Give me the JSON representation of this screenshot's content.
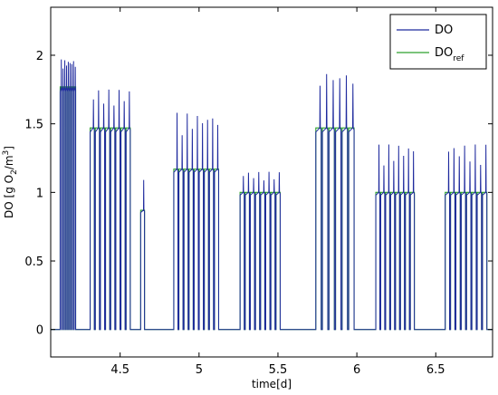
{
  "chart_data": {
    "type": "line",
    "xlabel": "time[d]",
    "ylabel": {
      "text": "DO [g O",
      "sub": "2",
      "mid": "/m",
      "sup": "3",
      "end": "]"
    },
    "xlim": [
      4.06,
      6.86
    ],
    "ylim": [
      -0.2,
      2.35
    ],
    "xticks": [
      4.5,
      5,
      5.5,
      6,
      6.5
    ],
    "xtick_labels": [
      "4.5",
      "5",
      "5.5",
      "6",
      "6.5"
    ],
    "yticks": [
      0,
      0.5,
      1,
      1.5,
      2
    ],
    "ytick_labels": [
      "0",
      "0.5",
      "1",
      "1.5",
      "2"
    ],
    "grid": false,
    "legend_position": "top-right",
    "legend": [
      {
        "name": "DO",
        "color": "#1f2a9e"
      },
      {
        "name": "DO",
        "sub": "ref",
        "color": "#2ca02c"
      }
    ],
    "blocks": [
      {
        "start": 4.12,
        "end": 4.22,
        "level": 1.77,
        "pulses": 9,
        "peak": 1.97,
        "tail": 0.0
      },
      {
        "start": 4.31,
        "end": 4.57,
        "level": 1.47,
        "pulses": 8,
        "peak": 1.75,
        "tail": 0.0
      },
      {
        "start": 4.63,
        "end": 4.66,
        "level": 0.87,
        "pulses": 1,
        "peak": 1.15,
        "tail": 0.0
      },
      {
        "start": 4.84,
        "end": 5.13,
        "level": 1.17,
        "pulses": 9,
        "peak": 1.58,
        "tail": 0.0
      },
      {
        "start": 5.26,
        "end": 5.52,
        "level": 1.0,
        "pulses": 8,
        "peak": 1.15,
        "tail": 0.0
      },
      {
        "start": 5.74,
        "end": 5.99,
        "level": 1.47,
        "pulses": 6,
        "peak": 1.89,
        "tail": 0.0
      },
      {
        "start": 6.12,
        "end": 6.37,
        "level": 1.0,
        "pulses": 8,
        "peak": 1.35,
        "tail": 0.0
      },
      {
        "start": 6.56,
        "end": 6.83,
        "level": 1.0,
        "pulses": 8,
        "peak": 1.35,
        "tail": 0.0
      }
    ]
  }
}
